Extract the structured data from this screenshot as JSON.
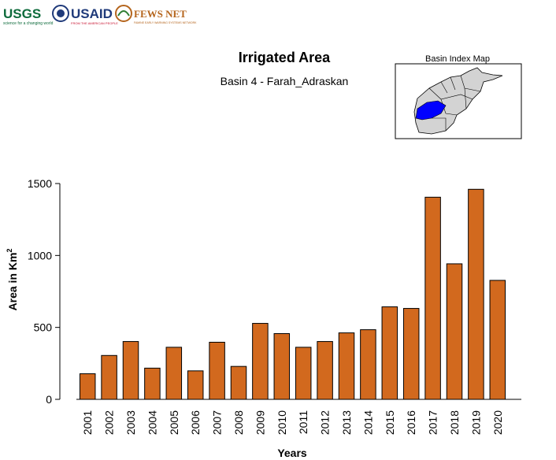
{
  "header": {
    "logos": [
      {
        "name": "usgs-logo",
        "text": "USGS",
        "tagline": "science for a changing world",
        "color": "#0e6b3c"
      },
      {
        "name": "usaid-logo",
        "text": "USAID",
        "tagline": "FROM THE AMERICAN PEOPLE",
        "color": "#c8102e"
      },
      {
        "name": "fewsnet-logo",
        "text": "FEWS NET",
        "tagline": "FAMINE EARLY WARNING SYSTEMS NETWORK",
        "color": "#b5651d"
      }
    ]
  },
  "inset_map": {
    "title": "Basin Index Map",
    "highlight_color": "#0000ff",
    "fill_color": "#d3d3d3"
  },
  "chart_data": {
    "type": "bar",
    "title": "Irrigated Area",
    "subtitle": "Basin 4 - Farah_Adraskan",
    "xlabel": "Years",
    "ylabel": "Area in Km",
    "ylabel_superscript": "2",
    "categories": [
      "2001",
      "2002",
      "2003",
      "2004",
      "2005",
      "2006",
      "2007",
      "2008",
      "2009",
      "2010",
      "2011",
      "2012",
      "2013",
      "2014",
      "2015",
      "2016",
      "2017",
      "2018",
      "2019",
      "2020"
    ],
    "values": [
      178,
      305,
      402,
      217,
      362,
      198,
      397,
      229,
      528,
      457,
      362,
      402,
      462,
      484,
      643,
      632,
      1405,
      942,
      1460,
      827
    ],
    "ylim": [
      0,
      1500
    ],
    "yticks": [
      0,
      500,
      1000,
      1500
    ],
    "bar_color": "#d2691e",
    "grid": false
  }
}
